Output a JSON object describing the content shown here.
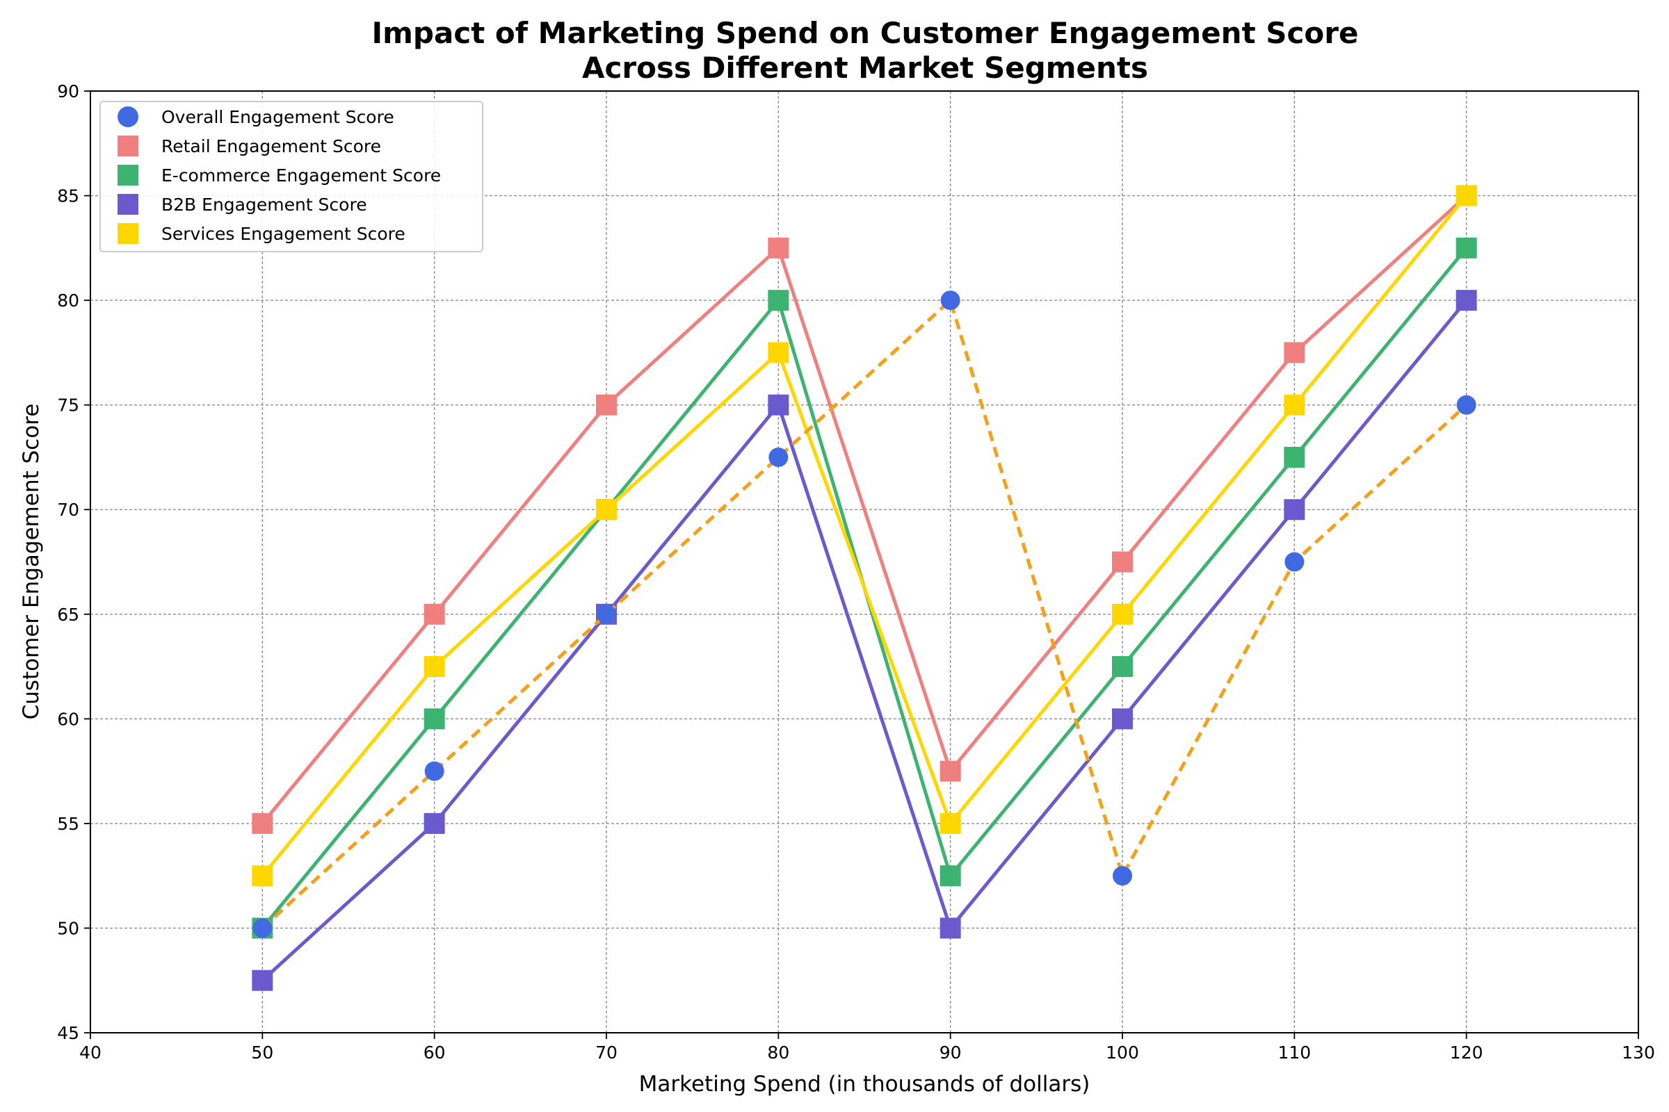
{
  "chart_data": {
    "type": "line",
    "title_lines": [
      "Impact of Marketing Spend on Customer Engagement Score",
      "Across Different Market Segments"
    ],
    "xlabel": "Marketing Spend (in thousands of dollars)",
    "ylabel": "Customer Engagement Score",
    "xlim": [
      40,
      130
    ],
    "ylim": [
      45,
      90
    ],
    "x_ticks": [
      40,
      50,
      60,
      70,
      80,
      90,
      100,
      110,
      120,
      130
    ],
    "y_ticks": [
      45,
      50,
      55,
      60,
      65,
      70,
      75,
      80,
      85,
      90
    ],
    "grid": true,
    "legend_position": "top-left",
    "x": [
      50,
      60,
      70,
      80,
      90,
      100,
      110,
      120
    ],
    "series": [
      {
        "name": "Overall Engagement Score",
        "values": [
          50,
          57.5,
          65,
          72.5,
          80,
          52.5,
          67.5,
          75
        ],
        "marker": "circle",
        "marker_color": "#4169e1",
        "line_color": "#f5a01a",
        "line_style": "dashed"
      },
      {
        "name": "Retail Engagement Score",
        "values": [
          55,
          65,
          75,
          82.5,
          57.5,
          67.5,
          77.5,
          85
        ],
        "marker": "square",
        "marker_color": "#f08080",
        "line_color": "#f08080",
        "line_style": "solid"
      },
      {
        "name": "E-commerce Engagement Score",
        "values": [
          50,
          60,
          70,
          80,
          52.5,
          62.5,
          72.5,
          82.5
        ],
        "marker": "square",
        "marker_color": "#3cb371",
        "line_color": "#3cb371",
        "line_style": "solid"
      },
      {
        "name": "B2B Engagement Score",
        "values": [
          47.5,
          55,
          65,
          75,
          50,
          60,
          70,
          80
        ],
        "marker": "square",
        "marker_color": "#6a5acd",
        "line_color": "#6a5acd",
        "line_style": "solid"
      },
      {
        "name": "Services Engagement Score",
        "values": [
          52.5,
          62.5,
          70,
          77.5,
          55,
          65,
          75,
          85
        ],
        "marker": "square",
        "marker_color": "#ffd700",
        "line_color": "#ffd700",
        "line_style": "solid"
      }
    ]
  }
}
